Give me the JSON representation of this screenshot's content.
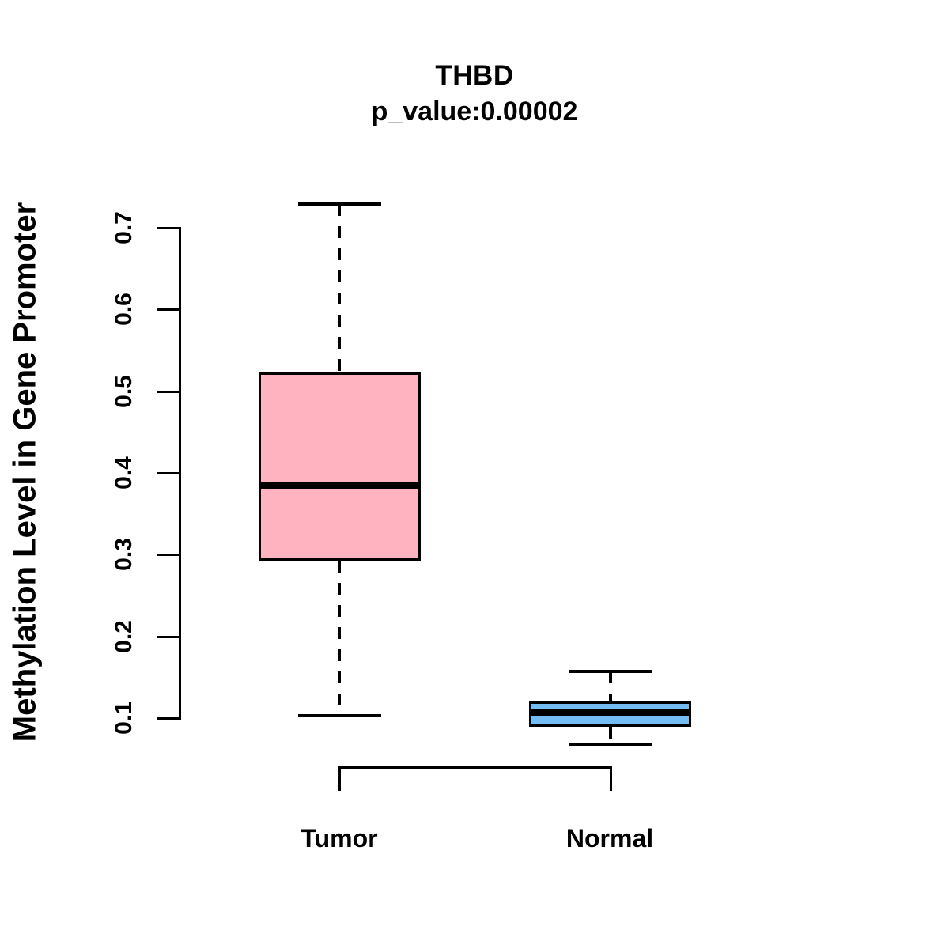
{
  "title": "THBD",
  "subtitle": "p_value:0.00002",
  "ylabel": "Methylation Level in Gene Promoter",
  "colors": {
    "tumor_fill": "#FFB3C1",
    "normal_fill": "#74BDF2",
    "line": "#000000",
    "background": "#FFFFFF"
  },
  "chart_data": {
    "type": "boxplot",
    "title": "THBD",
    "subtitle": "p_value:0.00002",
    "xlabel": "",
    "ylabel": "Methylation Level in Gene Promoter",
    "categories": [
      "Tumor",
      "Normal"
    ],
    "series": [
      {
        "name": "Tumor",
        "min": 0.103,
        "q1": 0.293,
        "median": 0.385,
        "q3": 0.523,
        "max": 0.729,
        "fill": "#FFB3C1",
        "outliers": []
      },
      {
        "name": "Normal",
        "min": 0.068,
        "q1": 0.089,
        "median": 0.107,
        "q3": 0.12,
        "max": 0.157,
        "fill": "#74BDF2",
        "outliers": []
      }
    ],
    "y_ticks": [
      "0.1",
      "0.2",
      "0.3",
      "0.4",
      "0.5",
      "0.6",
      "0.7"
    ],
    "ylim": [
      0.05,
      0.75
    ],
    "grid": false,
    "legend": "none",
    "whisker_style": "dashed",
    "median_color": "#000000"
  }
}
